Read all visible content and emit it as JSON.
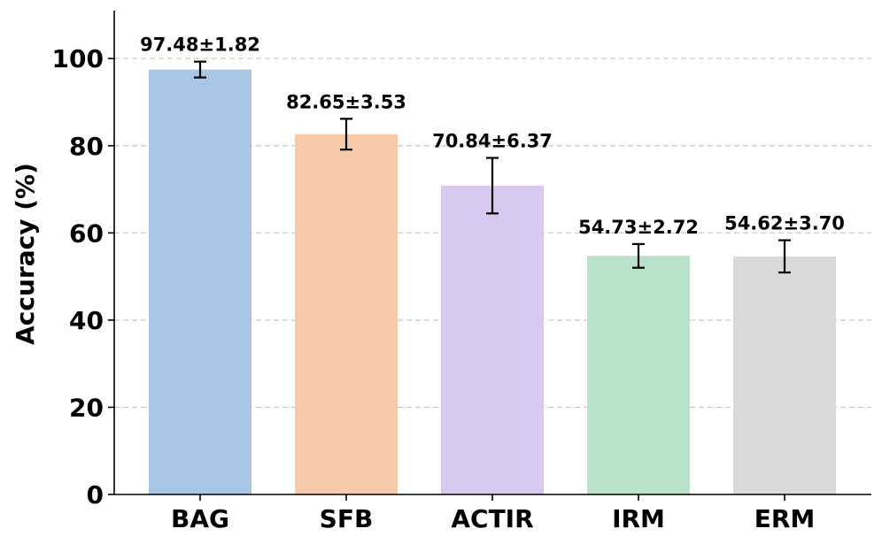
{
  "chart_data": {
    "type": "bar",
    "title": "",
    "xlabel": "",
    "ylabel": "Accuracy (%)",
    "ylim": [
      0,
      111
    ],
    "yticks": [
      0,
      20,
      40,
      60,
      80,
      100
    ],
    "grid": "y-dashed",
    "categories": [
      "BAG",
      "SFB",
      "ACTIR",
      "IRM",
      "ERM"
    ],
    "values": [
      97.48,
      82.65,
      70.84,
      54.73,
      54.62
    ],
    "errors": [
      1.82,
      3.53,
      6.37,
      2.72,
      3.7
    ],
    "data_labels": [
      "97.48±1.82",
      "82.65±3.53",
      "70.84±6.37",
      "54.73±2.72",
      "54.62±3.70"
    ],
    "colors": [
      "#a8c7e6",
      "#f6c9a8",
      "#d9c8ef",
      "#b9e3c8",
      "#d9d9d9"
    ]
  }
}
